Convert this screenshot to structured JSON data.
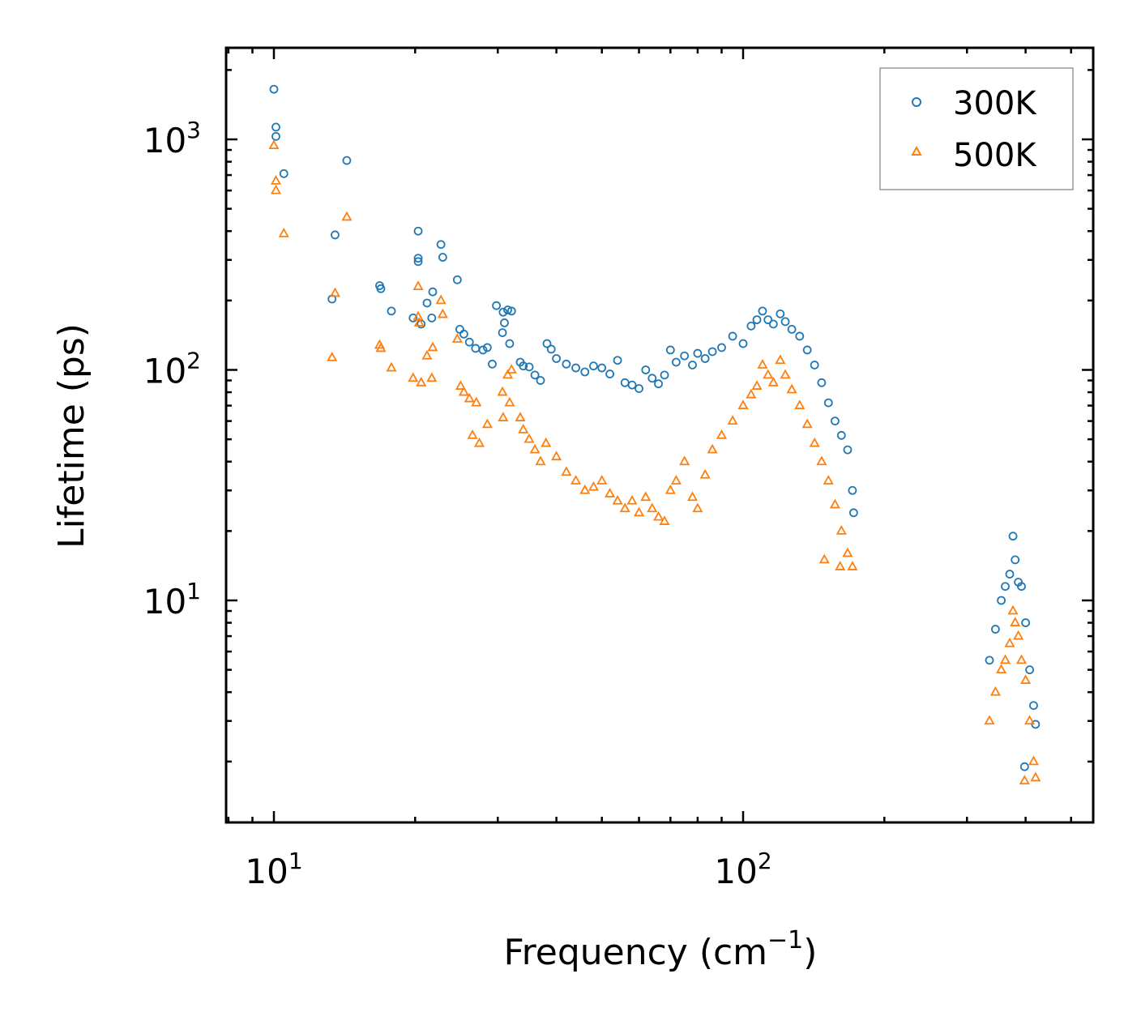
{
  "chart_data": {
    "type": "scatter",
    "title": "",
    "xlabel": "Frequency (cm",
    "xlabel_superscript": "−1",
    "xlabel_suffix": ")",
    "ylabel": "Lifetime (ps)",
    "xscale": "log",
    "yscale": "log",
    "xlim": [
      8,
      500
    ],
    "ylim": [
      1.2,
      2500
    ],
    "xticks": [
      {
        "value": 10,
        "base": "10",
        "exp": "1"
      },
      {
        "value": 100,
        "base": "10",
        "exp": "2"
      }
    ],
    "yticks": [
      {
        "value": 10,
        "base": "10",
        "exp": "1"
      },
      {
        "value": 100,
        "base": "10",
        "exp": "2"
      },
      {
        "value": 1000,
        "base": "10",
        "exp": "3"
      }
    ],
    "legend": {
      "position": "top-right",
      "entries": [
        {
          "label": "300K",
          "marker": "circle",
          "color": "#1f77b4"
        },
        {
          "label": "500K",
          "marker": "triangle",
          "color": "#ff7f0e"
        }
      ]
    },
    "series": [
      {
        "name": "300K",
        "color": "#1f77b4",
        "marker": "circle",
        "points": [
          [
            10.0,
            1650
          ],
          [
            10.1,
            1130
          ],
          [
            10.1,
            1030
          ],
          [
            10.5,
            710
          ],
          [
            14.3,
            810
          ],
          [
            13.5,
            385
          ],
          [
            13.3,
            203
          ],
          [
            16.8,
            232
          ],
          [
            16.9,
            225
          ],
          [
            17.8,
            180
          ],
          [
            19.8,
            168
          ],
          [
            20.3,
            400
          ],
          [
            20.3,
            305
          ],
          [
            20.3,
            295
          ],
          [
            20.6,
            158
          ],
          [
            21.2,
            195
          ],
          [
            21.7,
            168
          ],
          [
            21.8,
            218
          ],
          [
            22.7,
            350
          ],
          [
            22.9,
            308
          ],
          [
            24.6,
            246
          ],
          [
            24.9,
            150
          ],
          [
            25.4,
            143
          ],
          [
            26.1,
            132
          ],
          [
            26.9,
            124
          ],
          [
            27.9,
            122
          ],
          [
            28.5,
            125
          ],
          [
            29.2,
            106
          ],
          [
            29.8,
            190
          ],
          [
            30.8,
            178
          ],
          [
            31.5,
            182
          ],
          [
            32.1,
            180
          ],
          [
            31.0,
            160
          ],
          [
            30.7,
            145
          ],
          [
            31.8,
            130
          ],
          [
            33.5,
            108
          ],
          [
            34.0,
            104
          ],
          [
            35.0,
            103
          ],
          [
            36.0,
            95
          ],
          [
            37.0,
            90
          ],
          [
            38.2,
            130
          ],
          [
            39.0,
            123
          ],
          [
            40.0,
            112
          ],
          [
            42.0,
            106
          ],
          [
            44.0,
            102
          ],
          [
            46.0,
            98
          ],
          [
            48.0,
            104
          ],
          [
            50.0,
            102
          ],
          [
            52.0,
            96
          ],
          [
            54.0,
            110
          ],
          [
            56.0,
            88
          ],
          [
            58.0,
            86
          ],
          [
            60.0,
            83
          ],
          [
            62.0,
            100
          ],
          [
            64.0,
            92
          ],
          [
            66.0,
            87
          ],
          [
            68.0,
            95
          ],
          [
            70.0,
            122
          ],
          [
            72.0,
            108
          ],
          [
            75.0,
            115
          ],
          [
            78.0,
            105
          ],
          [
            80.0,
            118
          ],
          [
            83.0,
            112
          ],
          [
            86.0,
            120
          ],
          [
            90.0,
            125
          ],
          [
            95.0,
            140
          ],
          [
            100.0,
            130
          ],
          [
            104.0,
            155
          ],
          [
            107.0,
            165
          ],
          [
            110.0,
            180
          ],
          [
            113.0,
            165
          ],
          [
            116.0,
            158
          ],
          [
            120.0,
            175
          ],
          [
            123.0,
            162
          ],
          [
            127.0,
            150
          ],
          [
            132.0,
            140
          ],
          [
            137.0,
            122
          ],
          [
            142.0,
            105
          ],
          [
            147.0,
            88
          ],
          [
            152.0,
            72
          ],
          [
            157.0,
            60
          ],
          [
            162.0,
            52
          ],
          [
            167.0,
            45
          ],
          [
            171.0,
            30
          ],
          [
            172.0,
            24
          ],
          [
            335.0,
            5.5
          ],
          [
            345.0,
            7.5
          ],
          [
            355.0,
            10.0
          ],
          [
            362.0,
            11.5
          ],
          [
            370.0,
            13.0
          ],
          [
            376.0,
            19.0
          ],
          [
            380.0,
            15.0
          ],
          [
            386.0,
            12.0
          ],
          [
            392.0,
            11.5
          ],
          [
            400.0,
            8.0
          ],
          [
            408.0,
            5.0
          ],
          [
            416.0,
            3.5
          ],
          [
            420.0,
            2.9
          ],
          [
            398.0,
            1.9
          ]
        ]
      },
      {
        "name": "500K",
        "color": "#ff7f0e",
        "marker": "triangle",
        "points": [
          [
            10.0,
            940
          ],
          [
            10.1,
            660
          ],
          [
            10.1,
            600
          ],
          [
            10.5,
            390
          ],
          [
            14.3,
            460
          ],
          [
            13.5,
            215
          ],
          [
            13.3,
            113
          ],
          [
            16.8,
            128
          ],
          [
            16.9,
            124
          ],
          [
            17.8,
            102
          ],
          [
            19.8,
            92
          ],
          [
            20.3,
            230
          ],
          [
            20.3,
            170
          ],
          [
            20.4,
            160
          ],
          [
            20.6,
            88
          ],
          [
            21.2,
            115
          ],
          [
            21.7,
            92
          ],
          [
            21.8,
            125
          ],
          [
            22.7,
            200
          ],
          [
            22.9,
            174
          ],
          [
            24.6,
            136
          ],
          [
            25.0,
            85
          ],
          [
            25.4,
            80
          ],
          [
            26.1,
            75
          ],
          [
            27.0,
            72
          ],
          [
            28.5,
            58
          ],
          [
            26.5,
            52
          ],
          [
            27.4,
            48
          ],
          [
            30.8,
            62
          ],
          [
            31.5,
            95
          ],
          [
            32.1,
            100
          ],
          [
            30.7,
            80
          ],
          [
            31.8,
            72
          ],
          [
            33.5,
            62
          ],
          [
            34.0,
            55
          ],
          [
            35.0,
            50
          ],
          [
            36.0,
            45
          ],
          [
            37.0,
            40
          ],
          [
            38.0,
            48
          ],
          [
            40.0,
            42
          ],
          [
            42.0,
            36
          ],
          [
            44.0,
            33
          ],
          [
            46.0,
            30
          ],
          [
            48.0,
            31
          ],
          [
            50.0,
            33
          ],
          [
            52.0,
            29
          ],
          [
            54.0,
            27
          ],
          [
            56.0,
            25
          ],
          [
            58.0,
            27
          ],
          [
            60.0,
            24
          ],
          [
            62.0,
            28
          ],
          [
            64.0,
            25
          ],
          [
            66.0,
            23
          ],
          [
            68.0,
            22
          ],
          [
            70.0,
            30
          ],
          [
            72.0,
            33
          ],
          [
            75.0,
            40
          ],
          [
            78.0,
            28
          ],
          [
            80.0,
            25
          ],
          [
            83.0,
            35
          ],
          [
            86.0,
            45
          ],
          [
            90.0,
            52
          ],
          [
            95.0,
            60
          ],
          [
            100.0,
            70
          ],
          [
            104.0,
            78
          ],
          [
            107.0,
            85
          ],
          [
            110.0,
            105
          ],
          [
            113.0,
            95
          ],
          [
            116.0,
            88
          ],
          [
            120.0,
            110
          ],
          [
            123.0,
            95
          ],
          [
            127.0,
            82
          ],
          [
            132.0,
            70
          ],
          [
            137.0,
            58
          ],
          [
            142.0,
            48
          ],
          [
            147.0,
            40
          ],
          [
            152.0,
            33
          ],
          [
            157.0,
            26
          ],
          [
            162.0,
            20
          ],
          [
            167.0,
            16
          ],
          [
            171.0,
            14
          ],
          [
            149.0,
            15
          ],
          [
            161.0,
            14
          ],
          [
            335.0,
            3.0
          ],
          [
            345.0,
            4.0
          ],
          [
            355.0,
            5.0
          ],
          [
            362.0,
            5.5
          ],
          [
            370.0,
            6.5
          ],
          [
            376.0,
            9.0
          ],
          [
            380.0,
            8.0
          ],
          [
            386.0,
            7.0
          ],
          [
            392.0,
            5.5
          ],
          [
            400.0,
            4.5
          ],
          [
            408.0,
            3.0
          ],
          [
            416.0,
            2.0
          ],
          [
            420.0,
            1.7
          ],
          [
            398.0,
            1.65
          ]
        ]
      }
    ]
  }
}
